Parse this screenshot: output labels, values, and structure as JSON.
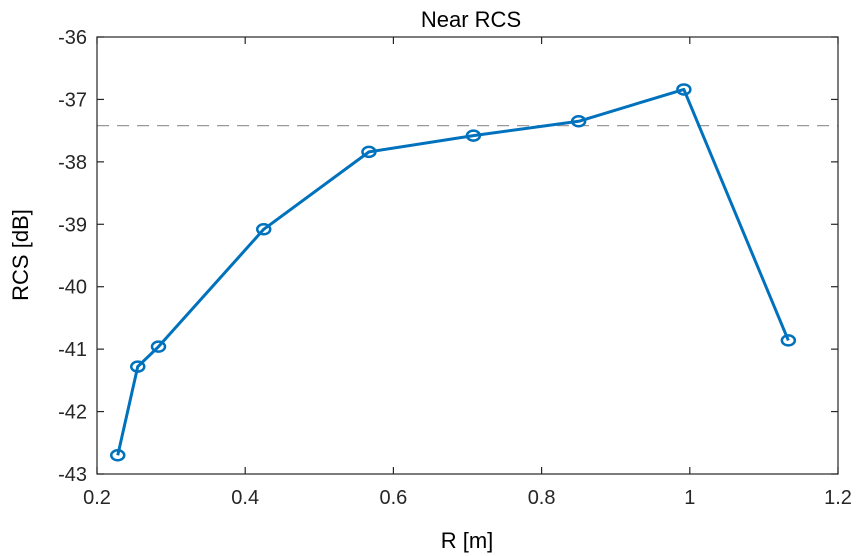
{
  "chart_data": {
    "type": "line",
    "title": "Near RCS",
    "xlabel": "R [m]",
    "ylabel": "RCS [dB]",
    "xlim": [
      0.2,
      1.2
    ],
    "ylim": [
      -43,
      -36
    ],
    "xticks": [
      0.2,
      0.4,
      0.6,
      0.8,
      1.0,
      1.2
    ],
    "xtick_labels": [
      "0.2",
      "0.4",
      "0.6",
      "0.8",
      "1",
      "1.2"
    ],
    "yticks": [
      -36,
      -37,
      -38,
      -39,
      -40,
      -41,
      -42,
      -43
    ],
    "ytick_labels": [
      "-36",
      "-37",
      "-38",
      "-39",
      "-40",
      "-41",
      "-42",
      "-43"
    ],
    "grid": false,
    "reference_line": {
      "y": -37.42,
      "style": "dashed",
      "color": "#999999"
    },
    "series": [
      {
        "name": "RCS",
        "color": "#0072BD",
        "marker": "circle",
        "x": [
          0.228,
          0.255,
          0.283,
          0.425,
          0.567,
          0.708,
          0.85,
          0.992,
          1.133
        ],
        "y": [
          -42.7,
          -41.28,
          -40.96,
          -39.08,
          -37.84,
          -37.58,
          -37.35,
          -36.84,
          -40.86
        ]
      }
    ]
  }
}
